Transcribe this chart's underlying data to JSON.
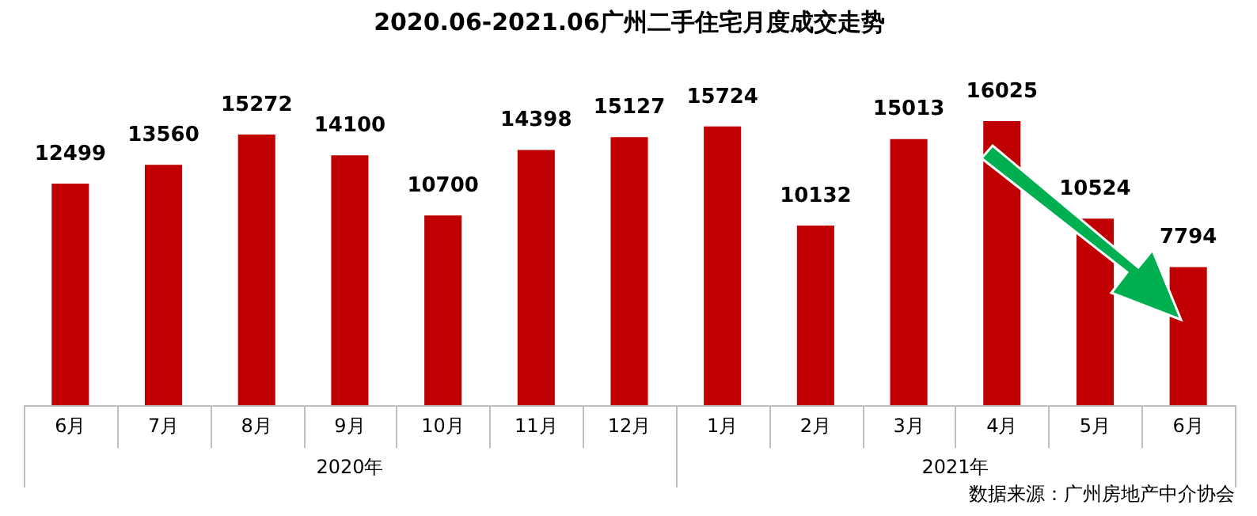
{
  "chart_data": {
    "type": "bar",
    "title": "2020.06-2021.06广州二手住宅月度成交走势",
    "categories": [
      "6月",
      "7月",
      "8月",
      "9月",
      "10月",
      "11月",
      "12月",
      "1月",
      "2月",
      "3月",
      "4月",
      "5月",
      "6月"
    ],
    "values": [
      12499,
      13560,
      15272,
      14100,
      10700,
      14398,
      15127,
      15724,
      10132,
      15013,
      16025,
      10524,
      7794
    ],
    "color": "#c00000",
    "data_labels": true,
    "legend": false,
    "annotations": [
      "2020年",
      "2021年",
      "数据来源：广州房地产中介协会"
    ]
  }
}
